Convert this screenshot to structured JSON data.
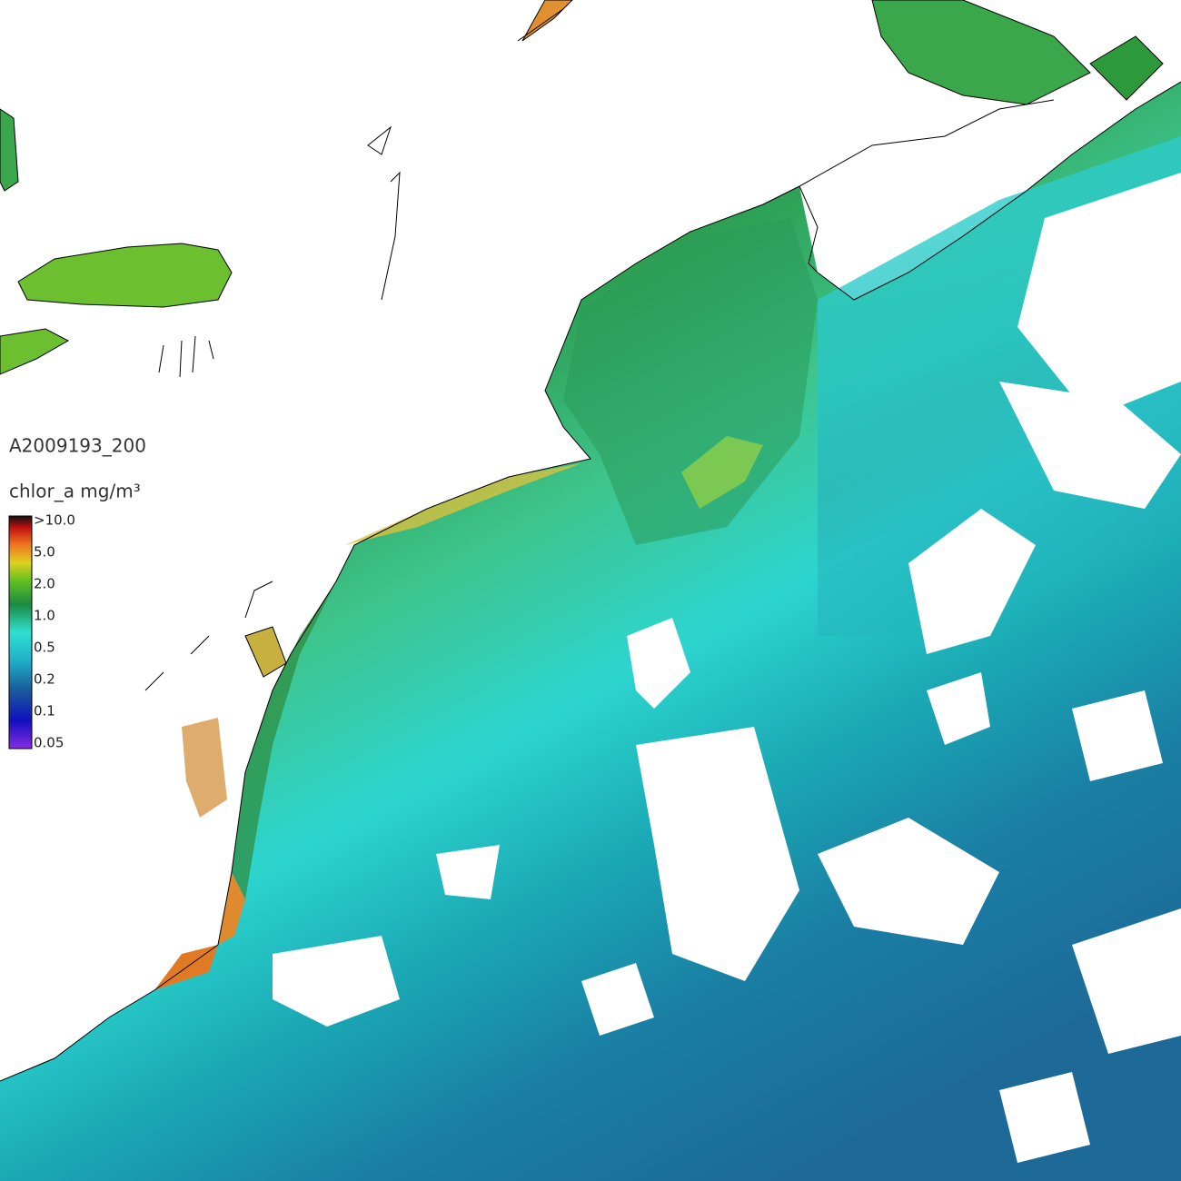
{
  "title": "A2009193_200",
  "colorbar": {
    "label": "chlor_a mg/m³",
    "ticks": [
      ">10.0",
      "5.0",
      "2.0",
      "1.0",
      "0.5",
      "0.2",
      "0.1",
      "0.05"
    ]
  }
}
